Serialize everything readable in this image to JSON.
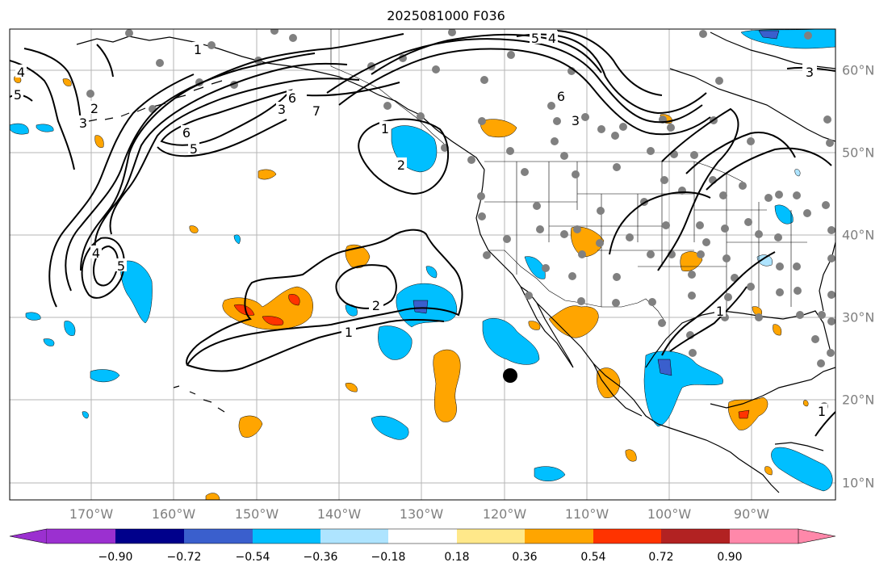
{
  "title": "2025081000 F036",
  "lon_labels": [
    "170°W",
    "160°W",
    "150°W",
    "140°W",
    "130°W",
    "120°W",
    "110°W",
    "100°W",
    "90°W"
  ],
  "lat_labels": [
    "60°N",
    "50°N",
    "40°N",
    "30°N",
    "20°N",
    "10°N"
  ],
  "contour_labels": [
    "1",
    "2",
    "3",
    "4",
    "5",
    "6",
    "7"
  ],
  "colorbar": {
    "ticks": [
      "−0.90",
      "−0.72",
      "−0.54",
      "−0.36",
      "−0.18",
      "0.18",
      "0.36",
      "0.54",
      "0.72",
      "0.90"
    ],
    "colors": [
      "#9b30d0",
      "#00008b",
      "#3a5fcd",
      "#00bfff",
      "#aee4ff",
      "#ffffff",
      "#ffe88a",
      "#ffa500",
      "#ff3300",
      "#b22222",
      "#ff88aa"
    ]
  },
  "fill_colors": {
    "neg_light": "#aee4ff",
    "neg_mid": "#00bfff",
    "neg_dark": "#3a5fcd",
    "pos_light": "#ffe88a",
    "pos_mid": "#ffa500",
    "pos_high": "#ff3300"
  }
}
